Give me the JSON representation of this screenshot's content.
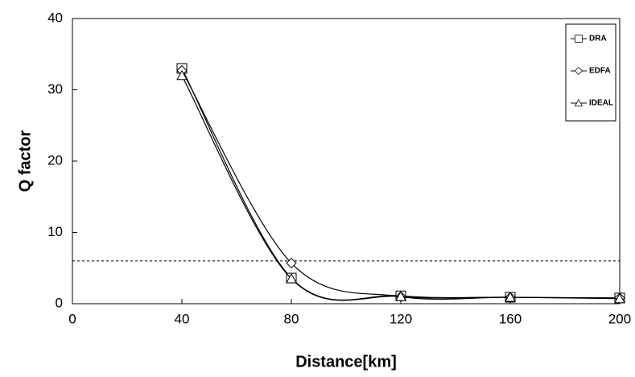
{
  "chart_data": {
    "type": "line",
    "xlabel": "Distance[km]",
    "ylabel": "Q factor",
    "x": [
      40,
      80,
      120,
      160,
      200
    ],
    "series": [
      {
        "name": "DRA",
        "color": "#000000",
        "marker": "square",
        "values": [
          33,
          3.6,
          1.1,
          0.9,
          0.8
        ]
      },
      {
        "name": "EDFA",
        "color": "#000000",
        "marker": "diamond",
        "values": [
          32.7,
          5.7,
          1.0,
          0.9,
          0.8
        ]
      },
      {
        "name": "IDEAL",
        "color": "#000000",
        "marker": "triangle",
        "values": [
          32,
          3.5,
          1.0,
          0.9,
          0.7
        ]
      }
    ],
    "reference_line": 6,
    "xlim": [
      0,
      200
    ],
    "xticks": [
      0,
      40,
      80,
      120,
      160,
      200
    ],
    "ylim": [
      0,
      40
    ],
    "yticks": [
      0,
      10,
      20,
      30,
      40
    ],
    "smooth": true,
    "legend": "top-right"
  }
}
